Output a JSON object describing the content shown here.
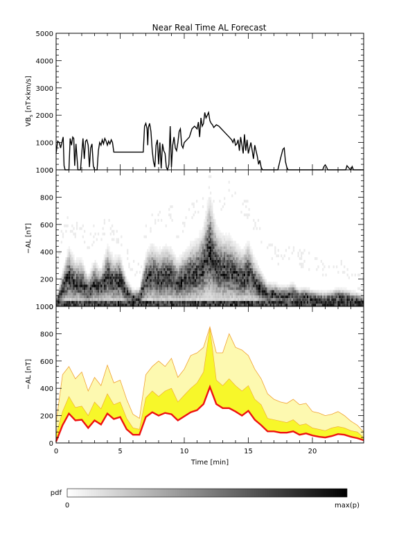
{
  "figure": {
    "title": "Near Real Time AL Forecast",
    "colorbar": {
      "label": "pdf",
      "min_label": "0",
      "max_label": "max(p)"
    }
  },
  "chart_data": [
    {
      "type": "line",
      "panel": "vbs",
      "ylabel": "VB_s [nT×km/s]",
      "ylabel_main": "VB",
      "ylabel_sub": "s",
      "ylabel_rest": " [nT×km/s]",
      "xlim": [
        0,
        24
      ],
      "ylim": [
        0,
        5000
      ],
      "yticks": [
        "0",
        "1000",
        "2000",
        "3000",
        "4000",
        "5000"
      ],
      "series": [
        {
          "color": "#000000",
          "x": [
            0.0,
            0.12,
            0.25,
            0.35,
            0.45,
            0.55,
            0.62,
            0.7,
            0.8,
            0.9,
            1.0,
            1.1,
            1.2,
            1.3,
            1.38,
            1.45,
            1.55,
            1.7,
            1.8,
            1.9,
            2.0,
            2.1,
            2.2,
            2.3,
            2.4,
            2.5,
            2.6,
            2.7,
            2.8,
            2.9,
            3.0,
            3.1,
            3.2,
            3.3,
            3.4,
            3.5,
            3.6,
            3.7,
            3.8,
            3.9,
            4.0,
            4.1,
            4.2,
            4.3,
            4.4,
            4.5,
            4.6,
            6.8,
            6.9,
            7.0,
            7.1,
            7.15,
            7.2,
            7.3,
            7.4,
            7.5,
            7.6,
            7.7,
            7.8,
            7.9,
            8.0,
            8.1,
            8.2,
            8.3,
            8.4,
            8.5,
            8.6,
            8.7,
            8.8,
            8.9,
            9.0,
            9.1,
            9.2,
            9.3,
            9.4,
            9.5,
            9.6,
            9.7,
            9.8,
            9.9,
            10.0,
            10.2,
            10.4,
            10.6,
            10.8,
            11.0,
            11.1,
            11.2,
            11.3,
            11.4,
            11.5,
            11.6,
            11.7,
            11.8,
            11.9,
            12.0,
            12.1,
            12.2,
            12.3,
            12.5,
            12.7,
            12.9,
            13.1,
            13.3,
            13.5,
            13.7,
            13.8,
            13.9,
            14.0,
            14.1,
            14.2,
            14.3,
            14.4,
            14.5,
            14.6,
            14.7,
            14.8,
            14.9,
            15.0,
            15.1,
            15.2,
            15.3,
            15.4,
            15.5,
            15.6,
            15.7,
            15.8,
            15.9,
            16.0,
            16.1,
            16.3,
            16.5,
            16.7,
            16.9,
            17.1,
            17.3,
            17.5,
            17.7,
            17.8,
            17.9,
            18.0,
            18.1,
            18.2,
            18.3,
            18.5,
            19.0,
            19.5,
            20.0,
            20.5,
            20.8,
            20.9,
            21.0,
            21.1,
            21.2,
            21.4,
            21.8,
            22.4,
            22.5,
            22.6,
            22.7,
            22.9,
            23.0,
            23.1,
            23.2,
            23.5,
            24.0
          ],
          "y": [
            600,
            1050,
            1000,
            800,
            1000,
            1200,
            150,
            0,
            0,
            0,
            0,
            1150,
            900,
            1200,
            1150,
            150,
            950,
            0,
            0,
            0,
            600,
            1150,
            400,
            1050,
            1100,
            900,
            100,
            800,
            950,
            150,
            0,
            0,
            0,
            700,
            1000,
            900,
            1100,
            950,
            1150,
            1050,
            900,
            1050,
            950,
            1100,
            1000,
            650,
            650,
            650,
            1600,
            1700,
            1500,
            900,
            1550,
            1700,
            1400,
            700,
            300,
            100,
            900,
            1100,
            200,
            1000,
            50,
            950,
            700,
            600,
            100,
            0,
            200,
            1600,
            100,
            900,
            1200,
            800,
            700,
            1000,
            1400,
            1500,
            900,
            800,
            1000,
            1100,
            1200,
            1500,
            1600,
            1500,
            1750,
            1200,
            1900,
            1600,
            1700,
            2100,
            1900,
            2000,
            2100,
            1800,
            1700,
            1650,
            1550,
            1650,
            1600,
            1500,
            1400,
            1300,
            1200,
            1100,
            1000,
            1150,
            900,
            950,
            1100,
            700,
            1200,
            900,
            600,
            1300,
            700,
            1100,
            600,
            800,
            1000,
            700,
            400,
            900,
            700,
            500,
            200,
            350,
            100,
            0,
            0,
            0,
            0,
            0,
            0,
            0,
            400,
            750,
            800,
            300,
            100,
            0,
            0,
            0,
            0,
            0,
            0,
            0,
            0,
            0,
            120,
            180,
            100,
            0,
            0,
            0,
            0,
            0,
            0,
            150,
            40,
            0,
            120,
            0,
            0,
            0
          ]
        }
      ]
    },
    {
      "type": "heatmap",
      "panel": "pdf",
      "ylabel": "−AL [nT]",
      "xlim": [
        0,
        24
      ],
      "ylim": [
        0,
        1000
      ],
      "yticks": [
        "0",
        "200",
        "400",
        "600",
        "800",
        "1000"
      ],
      "colormap": [
        "#ffffff",
        "#000000"
      ]
    },
    {
      "type": "area",
      "panel": "forecast",
      "ylabel": "−AL [nT]",
      "xlabel": "Time [min]",
      "xlim": [
        0,
        24
      ],
      "ylim": [
        0,
        1000
      ],
      "xticks": [
        "0",
        "5",
        "10",
        "15",
        "20"
      ],
      "yticks": [
        "0",
        "200",
        "400",
        "600",
        "800",
        "1000"
      ],
      "colors": {
        "median": "#ee1111",
        "inner_band": "#f7f72a",
        "outer_band": "#fdf9b0",
        "band_edge": "#f0a030"
      },
      "x": [
        0.0,
        0.5,
        1.0,
        1.5,
        2.0,
        2.5,
        3.0,
        3.5,
        4.0,
        4.5,
        5.0,
        5.5,
        6.0,
        6.5,
        7.0,
        7.5,
        8.0,
        8.5,
        9.0,
        9.5,
        10.0,
        10.5,
        11.0,
        11.5,
        12.0,
        12.5,
        13.0,
        13.5,
        14.0,
        14.5,
        15.0,
        15.5,
        16.0,
        16.5,
        17.0,
        17.5,
        18.0,
        18.5,
        19.0,
        19.5,
        20.0,
        20.5,
        21.0,
        21.5,
        22.0,
        22.5,
        23.0,
        23.5,
        24.0
      ],
      "series": [
        {
          "name": "median",
          "y": [
            10,
            130,
            215,
            165,
            170,
            110,
            165,
            135,
            215,
            175,
            190,
            100,
            60,
            60,
            190,
            225,
            200,
            220,
            210,
            165,
            195,
            225,
            240,
            285,
            410,
            285,
            255,
            255,
            230,
            200,
            235,
            170,
            130,
            85,
            85,
            75,
            75,
            85,
            60,
            70,
            55,
            45,
            40,
            50,
            65,
            60,
            45,
            35,
            20
          ]
        },
        {
          "name": "inner_upper",
          "y": [
            60,
            230,
            340,
            260,
            270,
            200,
            300,
            250,
            360,
            280,
            300,
            180,
            110,
            100,
            330,
            380,
            340,
            380,
            400,
            300,
            350,
            400,
            440,
            520,
            840,
            460,
            420,
            470,
            420,
            380,
            420,
            320,
            280,
            180,
            170,
            160,
            150,
            170,
            130,
            140,
            110,
            100,
            90,
            110,
            120,
            110,
            90,
            80,
            40
          ]
        },
        {
          "name": "outer_upper",
          "y": [
            150,
            500,
            560,
            470,
            520,
            380,
            480,
            420,
            570,
            440,
            460,
            320,
            210,
            180,
            500,
            560,
            600,
            560,
            620,
            480,
            540,
            640,
            660,
            700,
            850,
            660,
            660,
            800,
            700,
            680,
            640,
            540,
            470,
            360,
            320,
            300,
            290,
            320,
            280,
            290,
            230,
            220,
            200,
            210,
            230,
            200,
            160,
            130,
            80
          ]
        }
      ]
    }
  ]
}
